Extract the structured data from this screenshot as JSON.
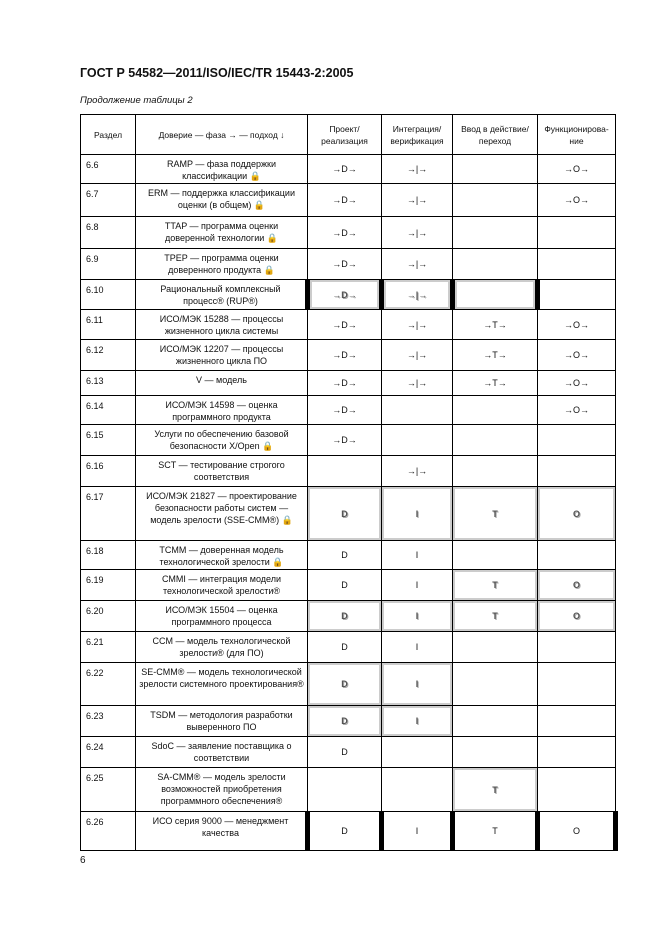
{
  "header": {
    "title": "ГОСТ Р 54582—2011/ISO/IEC/TR 15443-2:2005",
    "caption": "Продолжение таблицы 2"
  },
  "table": {
    "columns": [
      "Раздел",
      "Доверие — фаза → — подход ↓",
      "Проект/ реализация",
      "Интеграция/ верификация",
      "Ввод в действие/ переход",
      "Функционирова-ние"
    ],
    "rows": [
      {
        "section": "6.6",
        "approach": "RAMP — фаза поддержки классификации 🔒",
        "d": "→D→",
        "i": "→|→",
        "t": "",
        "o": "→O→"
      },
      {
        "section": "6.7",
        "approach": "ERM — поддержка классификации оценки (в общем) 🔒",
        "d": "→D→",
        "i": "→|→",
        "t": "",
        "o": "→O→"
      },
      {
        "section": "6.8",
        "approach": "TTAP — программа оценки доверенной технологии 🔒",
        "d": "→D→",
        "i": "→|→",
        "t": "",
        "o": ""
      },
      {
        "section": "6.9",
        "approach": "TPEP — программа оценки доверенного продукта 🔒",
        "d": "→D→",
        "i": "→|→",
        "t": "",
        "o": ""
      },
      {
        "section": "6.10",
        "approach": "Рациональный комплексный процесс® (RUP®)",
        "d": "→D→",
        "i": "→|→",
        "t": "",
        "o": ""
      },
      {
        "section": "6.11",
        "approach": "ИСО/МЭК 15288 — процессы жизненного цикла системы",
        "d": "→D→",
        "i": "→|→",
        "t": "→T→",
        "o": "→O→"
      },
      {
        "section": "6.12",
        "approach": "ИСО/МЭК 12207 — процессы жизненного цикла ПО",
        "d": "→D→",
        "i": "→|→",
        "t": "→T→",
        "o": "→O→"
      },
      {
        "section": "6.13",
        "approach": "V — модель",
        "d": "→D→",
        "i": "→|→",
        "t": "→T→",
        "o": "→O→"
      },
      {
        "section": "6.14",
        "approach": "ИСО/МЭК 14598 — оценка программного продукта",
        "d": "→D→",
        "i": "",
        "t": "",
        "o": "→O→"
      },
      {
        "section": "6.15",
        "approach": "Услуги по обеспечению базовой безопасности X/Open 🔒",
        "d": "→D→",
        "i": "",
        "t": "",
        "o": ""
      },
      {
        "section": "6.16",
        "approach": "SCT — тестирование строгого соответствия",
        "d": "",
        "i": "→|→",
        "t": "",
        "o": ""
      },
      {
        "section": "6.17",
        "approach": "ИСО/МЭК 21827 — проектирование безопасности работы систем — модель зрелости (SSE-CMM®) 🔒",
        "d": "D",
        "i": "I",
        "t": "T",
        "o": "O"
      },
      {
        "section": "6.18",
        "approach": "TCMM — доверенная модель технологической зрелости 🔒",
        "d": "D",
        "i": "I",
        "t": "",
        "o": ""
      },
      {
        "section": "6.19",
        "approach": "CMMI — интеграция модели технологической зрелости®",
        "d": "D",
        "i": "I",
        "t": "T",
        "o": "O"
      },
      {
        "section": "6.20",
        "approach": "ИСО/МЭК 15504 — оценка программного процесса",
        "d": "D",
        "i": "I",
        "t": "T",
        "o": "O"
      },
      {
        "section": "6.21",
        "approach": "CCM — модель технологической зрелости® (для ПО)",
        "d": "D",
        "i": "I",
        "t": "",
        "o": ""
      },
      {
        "section": "6.22",
        "approach": "SE-CMM® — модель технологической зрелости системного проектирования®",
        "d": "D",
        "i": "I",
        "t": "",
        "o": ""
      },
      {
        "section": "6.23",
        "approach": "TSDM — методология разработки выверенного ПО",
        "d": "D",
        "i": "I",
        "t": "",
        "o": ""
      },
      {
        "section": "6.24",
        "approach": "SdoC — заявление поставщика о соответствии",
        "d": "D",
        "i": "",
        "t": "",
        "o": ""
      },
      {
        "section": "6.25",
        "approach": "SA-CMM® — модель зрелости возможностей приобретения программного обеспечения®",
        "d": "",
        "i": "",
        "t": "T",
        "o": ""
      },
      {
        "section": "6.26",
        "approach": "ИСО серия 9000 — менеджмент качества",
        "d": "D",
        "i": "I",
        "t": "T",
        "o": "O"
      }
    ]
  },
  "footer": {
    "page_number": "6"
  }
}
